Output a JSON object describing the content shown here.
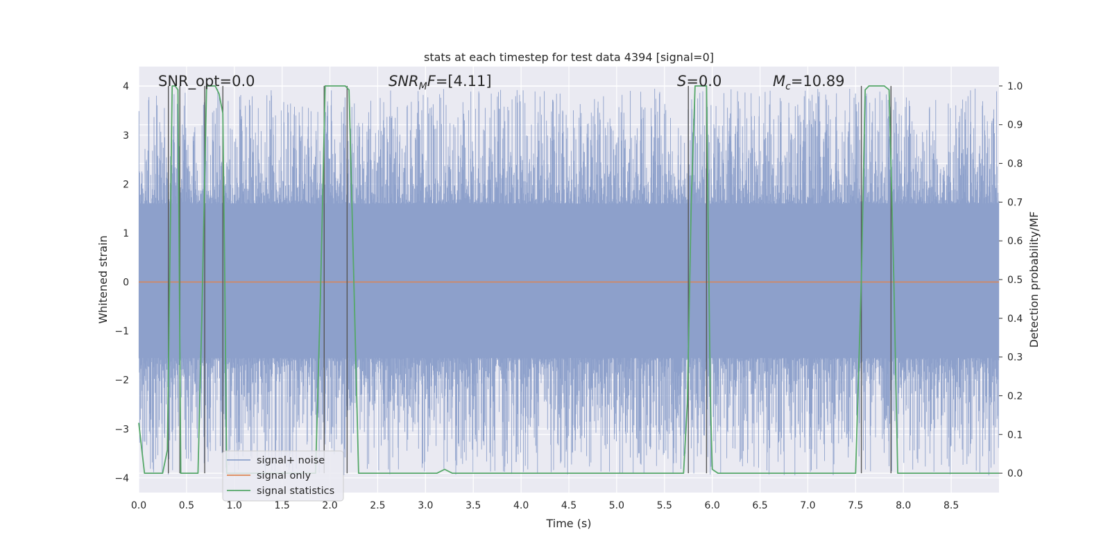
{
  "chart_data": {
    "type": "line",
    "title": "stats at each timestep for test data 4394 [signal=0]",
    "xlabel": "Time (s)",
    "ylabel": "Whitened strain",
    "y2label": "Detection probability/MF",
    "xlim": [
      0,
      9
    ],
    "ylim": [
      -4.3,
      4.4
    ],
    "y2lim": [
      -0.05,
      1.05
    ],
    "xticks": [
      "0.0",
      "0.5",
      "1.0",
      "1.5",
      "2.0",
      "2.5",
      "3.0",
      "3.5",
      "4.0",
      "4.5",
      "5.0",
      "5.5",
      "6.0",
      "6.5",
      "7.0",
      "7.5",
      "8.0",
      "8.5"
    ],
    "yticks": [
      "−4",
      "−3",
      "−2",
      "−1",
      "0",
      "1",
      "2",
      "3",
      "4"
    ],
    "y2ticks": [
      "0.0",
      "0.1",
      "0.2",
      "0.3",
      "0.4",
      "0.5",
      "0.6",
      "0.7",
      "0.8",
      "0.9",
      "1.0"
    ],
    "grid": true,
    "legend_position": "lower-left",
    "annotations": {
      "snr_opt": "SNR_opt=0.0",
      "snr_mf": "=[4.11]",
      "s": "=0.0",
      "mc": "=10.89"
    },
    "series": [
      {
        "name": "signal+ noise",
        "color": "#8da0cb",
        "axis": "left",
        "description": "dense whitened noise, band roughly ±1.6 with spikes up to ±3.9"
      },
      {
        "name": "signal only",
        "color": "#dd8452",
        "axis": "left",
        "x": [
          0,
          9
        ],
        "y": [
          0,
          0
        ]
      },
      {
        "name": "signal statistics",
        "color": "#55a868",
        "axis": "right",
        "x": [
          0.0,
          0.06,
          0.13,
          0.25,
          0.3,
          0.35,
          0.38,
          0.41,
          0.44,
          0.49,
          0.55,
          0.62,
          0.66,
          0.71,
          0.76,
          0.8,
          0.84,
          0.88,
          0.9,
          0.92,
          0.97,
          1.05,
          1.2,
          1.4,
          1.6,
          1.85,
          1.9,
          1.95,
          2.0,
          2.1,
          2.16,
          2.2,
          2.25,
          2.3,
          2.36,
          2.5,
          3.0,
          3.12,
          3.2,
          3.28,
          3.5,
          4.0,
          4.5,
          5.0,
          5.5,
          5.7,
          5.74,
          5.78,
          5.82,
          5.9,
          5.94,
          5.98,
          6.0,
          6.06,
          6.5,
          7.0,
          7.5,
          7.56,
          7.6,
          7.64,
          7.7,
          7.8,
          7.85,
          7.9,
          7.94,
          8.0,
          8.5,
          9.0
        ],
        "y": [
          0.13,
          0.0,
          0.0,
          0.0,
          0.06,
          1.0,
          1.0,
          0.99,
          0.0,
          0.0,
          0.0,
          0.0,
          0.4,
          1.0,
          1.0,
          1.0,
          0.98,
          0.93,
          0.5,
          0.0,
          0.0,
          0.0,
          0.0,
          0.0,
          0.0,
          0.0,
          0.45,
          1.0,
          1.0,
          1.0,
          1.0,
          0.99,
          0.5,
          0.0,
          0.0,
          0.0,
          0.0,
          0.0,
          0.01,
          0.0,
          0.0,
          0.0,
          0.0,
          0.0,
          0.0,
          0.0,
          0.18,
          0.7,
          1.0,
          1.0,
          1.0,
          0.2,
          0.01,
          0.0,
          0.0,
          0.0,
          0.0,
          0.5,
          0.99,
          1.0,
          1.0,
          1.0,
          0.99,
          0.5,
          0.0,
          0.0,
          0.0,
          0.0
        ]
      }
    ],
    "vertical_markers": [
      0.31,
      0.43,
      0.69,
      0.88,
      1.94,
      2.18,
      5.75,
      5.94,
      7.56,
      7.87
    ]
  }
}
